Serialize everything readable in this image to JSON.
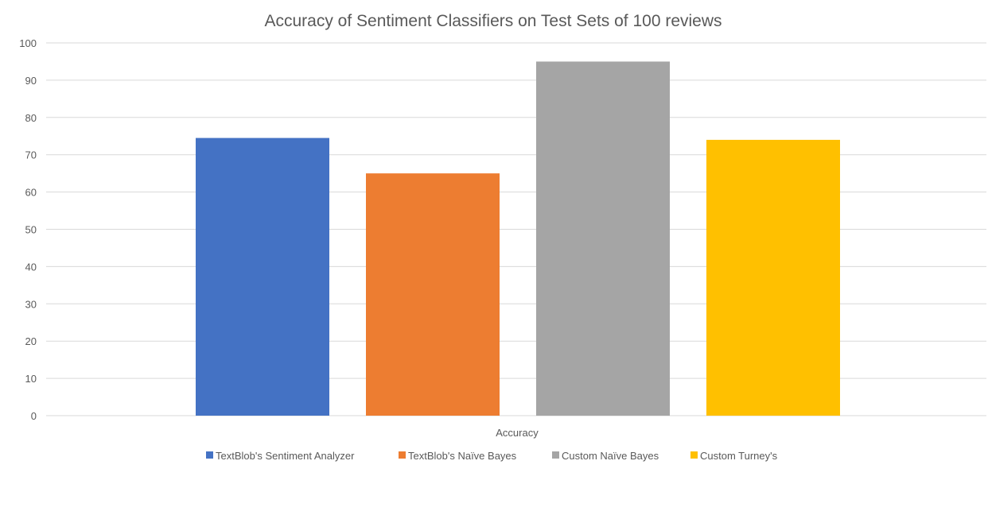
{
  "chart_data": {
    "type": "bar",
    "title": "Accuracy of Sentiment Classifiers on Test Sets of 100 reviews",
    "categories": [
      "Accuracy"
    ],
    "series": [
      {
        "name": "TextBlob's Sentiment Analyzer",
        "values": [
          74.5
        ],
        "color": "#4472C4"
      },
      {
        "name": "TextBlob's Naïve Bayes",
        "values": [
          65
        ],
        "color": "#ED7D31"
      },
      {
        "name": "Custom Naïve Bayes",
        "values": [
          95
        ],
        "color": "#A5A5A5"
      },
      {
        "name": "Custom Turney's",
        "values": [
          74
        ],
        "color": "#FFC000"
      }
    ],
    "xlabel": "",
    "ylabel": "",
    "ylim": [
      0,
      100
    ],
    "yticks": [
      0,
      10,
      20,
      30,
      40,
      50,
      60,
      70,
      80,
      90,
      100
    ],
    "grid": true,
    "legend_position": "bottom"
  }
}
